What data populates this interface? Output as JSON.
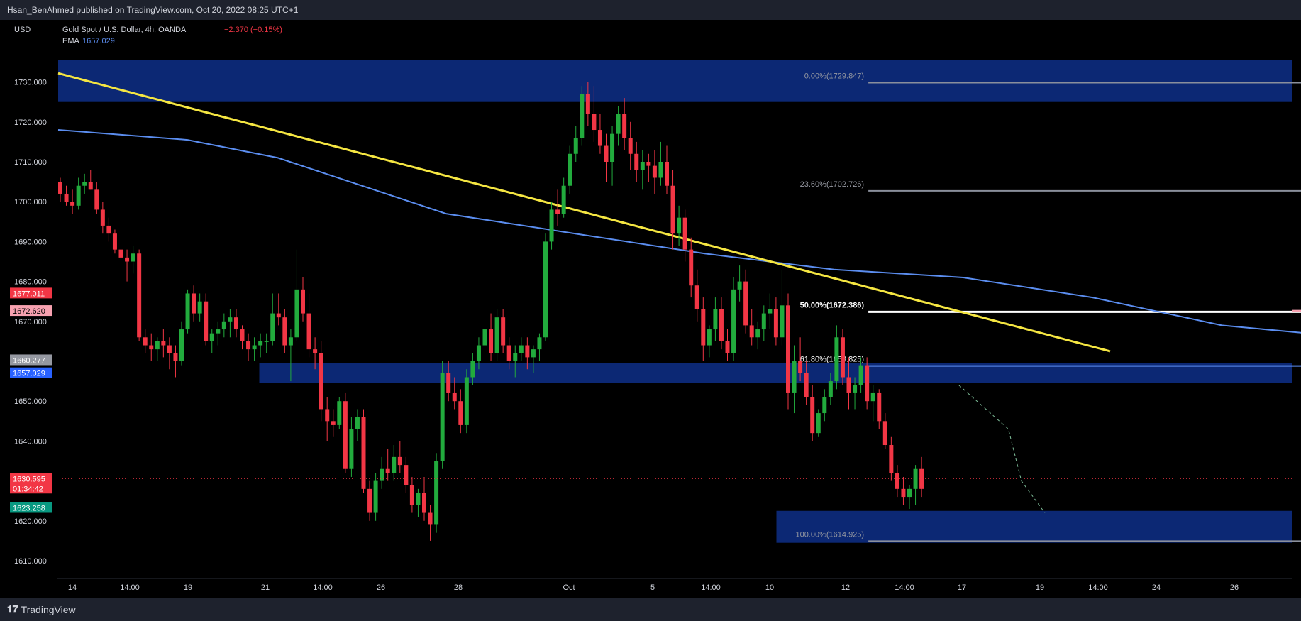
{
  "header": {
    "published": "Hsan_BenAhmed published on TradingView.com, Oct 20, 2022 08:25 UTC+1"
  },
  "footer": {
    "brand": "TradingView",
    "icon": "tradingview-logo-icon"
  },
  "legend": {
    "currency": "USD",
    "symbol": "Gold Spot / U.S. Dollar, 4h, OANDA",
    "change": "−2.370 (−0.15%)",
    "ema_label": "EMA",
    "ema_value": "1657.029"
  },
  "colors": {
    "up": "#26a69a",
    "up_fill": "#22ab3d",
    "down": "#f23645",
    "zone": "#0d2a7a",
    "trendline": "#f5e642",
    "ema": "#5b8def",
    "fib_gray": "#8a8f9c",
    "fib_white": "#ffffff",
    "pink_line": "#f7a1b0"
  },
  "chart_data": {
    "type": "candlestick",
    "title": "Gold Spot / U.S. Dollar, 4h, OANDA",
    "ylim": [
      1602,
      1738
    ],
    "y_ticks": [
      "1730.000",
      "1720.000",
      "1710.000",
      "1700.000",
      "1690.000",
      "1680.000",
      "1670.000",
      "1650.000",
      "1640.000",
      "1620.000",
      "1610.000"
    ],
    "y_tick_values": [
      1730,
      1720,
      1710,
      1700,
      1690,
      1680,
      1670,
      1650,
      1640,
      1620,
      1610
    ],
    "x_ticks": [
      "14",
      "14:00",
      "19",
      "21",
      "14:00",
      "26",
      "28",
      "Oct",
      "5",
      "14:00",
      "10",
      "12",
      "14:00",
      "17",
      "19",
      "14:00",
      "24",
      "26"
    ],
    "x_tick_bars": [
      3,
      28,
      48,
      74,
      102,
      126,
      150,
      198,
      228,
      248,
      268,
      294,
      318,
      338,
      364,
      384,
      404,
      430
    ],
    "price_labels": [
      {
        "text": "1677.011",
        "value": 1677.011,
        "color": "#f23645"
      },
      {
        "text": "1672.620",
        "value": 1672.62,
        "color": "#f7a1b0"
      },
      {
        "text": "1660.277",
        "value": 1660.277,
        "color": "#9598a1"
      },
      {
        "text": "1657.029",
        "value": 1657.029,
        "color": "#2962ff"
      },
      {
        "text": "1630.595",
        "value": 1630.595,
        "color": "#f23645"
      },
      {
        "text": "01:34:42",
        "value": 1630.595,
        "color": "#f23645",
        "offset": 1
      },
      {
        "text": "1623.258",
        "value": 1623.258,
        "color": "#089981"
      }
    ],
    "current_price": 1630.595,
    "zones": [
      {
        "from": 1725,
        "to": 1735.5,
        "start_bar": 0
      },
      {
        "from": 1654.5,
        "to": 1659.5,
        "start_bar": 35
      },
      {
        "from": 1614.5,
        "to": 1622.5,
        "start_bar": 125
      }
    ],
    "fib_levels": [
      {
        "label": "0.00%(1729.847)",
        "value": 1729.847,
        "color": "#8a8f9c"
      },
      {
        "label": "23.60%(1702.726)",
        "value": 1702.726,
        "color": "#8a8f9c"
      },
      {
        "label": "50.00%(1672.386)",
        "value": 1672.386,
        "color": "#ffffff"
      },
      {
        "label": "61.80%(1658.825)",
        "value": 1658.825,
        "color": "#5b8def"
      },
      {
        "label": "100.00%(1614.925)",
        "value": 1614.925,
        "color": "#8a8f9c"
      }
    ],
    "fib_bar_range": [
      141,
      311
    ],
    "trendline": {
      "start_bar": 0,
      "start_value": 1732.2,
      "end_bar": 368,
      "end_value": 1660.4
    },
    "position": {
      "start_bar": 333,
      "end_bar": 395,
      "entry": 1660.4,
      "stop": 1677.0,
      "target": 1622.9
    },
    "pink_line": {
      "value": 1672.62,
      "start_bar": 337
    },
    "candles": [
      [
        1705,
        1706,
        1700,
        1702
      ],
      [
        1702,
        1704,
        1699,
        1700
      ],
      [
        1700,
        1703,
        1697,
        1699
      ],
      [
        1699,
        1706,
        1698,
        1704
      ],
      [
        1704,
        1707,
        1702,
        1705
      ],
      [
        1705,
        1708,
        1703,
        1703
      ],
      [
        1703,
        1705,
        1697,
        1698
      ],
      [
        1698,
        1700,
        1692,
        1694
      ],
      [
        1694,
        1696,
        1690,
        1692
      ],
      [
        1692,
        1693,
        1687,
        1688
      ],
      [
        1688,
        1690,
        1684,
        1686
      ],
      [
        1686,
        1688,
        1680,
        1685
      ],
      [
        1685,
        1689,
        1682,
        1687
      ],
      [
        1687,
        1688,
        1665,
        1666
      ],
      [
        1666,
        1668,
        1662,
        1664
      ],
      [
        1664,
        1667,
        1660,
        1663
      ],
      [
        1663,
        1666,
        1660,
        1665
      ],
      [
        1665,
        1668,
        1661,
        1664
      ],
      [
        1664,
        1666,
        1658,
        1662
      ],
      [
        1662,
        1664,
        1656,
        1660
      ],
      [
        1660,
        1670,
        1659,
        1668
      ],
      [
        1668,
        1678,
        1667,
        1677
      ],
      [
        1677,
        1679,
        1670,
        1672
      ],
      [
        1672,
        1677,
        1670,
        1675
      ],
      [
        1675,
        1677,
        1664,
        1665
      ],
      [
        1665,
        1668,
        1662,
        1667
      ],
      [
        1667,
        1670,
        1664,
        1668
      ],
      [
        1668,
        1672,
        1666,
        1670
      ],
      [
        1670,
        1673,
        1666,
        1671
      ],
      [
        1671,
        1673,
        1666,
        1668
      ],
      [
        1668,
        1669,
        1663,
        1665
      ],
      [
        1665,
        1667,
        1660,
        1663
      ],
      [
        1663,
        1666,
        1660,
        1664
      ],
      [
        1664,
        1667,
        1661,
        1665
      ],
      [
        1665,
        1667,
        1662,
        1665
      ],
      [
        1665,
        1677,
        1664,
        1672
      ],
      [
        1672,
        1677,
        1669,
        1671
      ],
      [
        1671,
        1673,
        1662,
        1664
      ],
      [
        1664,
        1668,
        1655,
        1666
      ],
      [
        1666,
        1688,
        1665,
        1678
      ],
      [
        1678,
        1681,
        1670,
        1672
      ],
      [
        1672,
        1677,
        1661,
        1663
      ],
      [
        1663,
        1666,
        1658,
        1662
      ],
      [
        1662,
        1665,
        1645,
        1648
      ],
      [
        1648,
        1651,
        1640,
        1645
      ],
      [
        1645,
        1648,
        1641,
        1644
      ],
      [
        1644,
        1651,
        1643,
        1650
      ],
      [
        1650,
        1652,
        1632,
        1633
      ],
      [
        1633,
        1646,
        1631,
        1643
      ],
      [
        1643,
        1648,
        1640,
        1646
      ],
      [
        1646,
        1648,
        1627,
        1628
      ],
      [
        1628,
        1630,
        1620,
        1622
      ],
      [
        1622,
        1632,
        1620,
        1630
      ],
      [
        1630,
        1636,
        1628,
        1633
      ],
      [
        1633,
        1638,
        1630,
        1632
      ],
      [
        1632,
        1639,
        1630,
        1636
      ],
      [
        1636,
        1640,
        1632,
        1634
      ],
      [
        1634,
        1636,
        1627,
        1629
      ],
      [
        1629,
        1631,
        1622,
        1624
      ],
      [
        1624,
        1628,
        1621,
        1627
      ],
      [
        1627,
        1631,
        1620,
        1622
      ],
      [
        1622,
        1624,
        1615,
        1619
      ],
      [
        1619,
        1637,
        1617,
        1635
      ],
      [
        1635,
        1660,
        1633,
        1657
      ],
      [
        1657,
        1660,
        1650,
        1652
      ],
      [
        1652,
        1656,
        1648,
        1650
      ],
      [
        1650,
        1653,
        1642,
        1644
      ],
      [
        1644,
        1658,
        1642,
        1656
      ],
      [
        1656,
        1662,
        1654,
        1660
      ],
      [
        1660,
        1666,
        1658,
        1664
      ],
      [
        1664,
        1669,
        1662,
        1668
      ],
      [
        1668,
        1672,
        1660,
        1662
      ],
      [
        1662,
        1673,
        1660,
        1671
      ],
      [
        1671,
        1673,
        1662,
        1664
      ],
      [
        1664,
        1666,
        1658,
        1660
      ],
      [
        1660,
        1664,
        1656,
        1662
      ],
      [
        1662,
        1666,
        1660,
        1664
      ],
      [
        1664,
        1666,
        1658,
        1661
      ],
      [
        1661,
        1664,
        1657,
        1663
      ],
      [
        1663,
        1667,
        1660,
        1666
      ],
      [
        1666,
        1692,
        1665,
        1690
      ],
      [
        1690,
        1700,
        1688,
        1698
      ],
      [
        1698,
        1703,
        1694,
        1697
      ],
      [
        1697,
        1706,
        1696,
        1704
      ],
      [
        1704,
        1714,
        1702,
        1712
      ],
      [
        1712,
        1719,
        1710,
        1716
      ],
      [
        1716,
        1729,
        1714,
        1727
      ],
      [
        1727,
        1730,
        1719,
        1722
      ],
      [
        1722,
        1729,
        1715,
        1718
      ],
      [
        1718,
        1722,
        1712,
        1714
      ],
      [
        1714,
        1717,
        1705,
        1710
      ],
      [
        1710,
        1719,
        1704,
        1717
      ],
      [
        1717,
        1724,
        1714,
        1722
      ],
      [
        1722,
        1726,
        1713,
        1716
      ],
      [
        1716,
        1720,
        1708,
        1712
      ],
      [
        1712,
        1715,
        1705,
        1708
      ],
      [
        1708,
        1713,
        1703,
        1710
      ],
      [
        1710,
        1712,
        1705,
        1709
      ],
      [
        1709,
        1713,
        1702,
        1706
      ],
      [
        1706,
        1715,
        1704,
        1710
      ],
      [
        1710,
        1714,
        1702,
        1704
      ],
      [
        1704,
        1708,
        1688,
        1692
      ],
      [
        1692,
        1699,
        1689,
        1696
      ],
      [
        1696,
        1698,
        1685,
        1688
      ],
      [
        1688,
        1691,
        1676,
        1679
      ],
      [
        1679,
        1683,
        1670,
        1673
      ],
      [
        1673,
        1676,
        1660,
        1664
      ],
      [
        1664,
        1669,
        1661,
        1668
      ],
      [
        1668,
        1676,
        1665,
        1673
      ],
      [
        1673,
        1676,
        1663,
        1665
      ],
      [
        1665,
        1668,
        1660,
        1662
      ],
      [
        1662,
        1681,
        1660,
        1678
      ],
      [
        1678,
        1684,
        1675,
        1680
      ],
      [
        1680,
        1683,
        1667,
        1669
      ],
      [
        1669,
        1673,
        1664,
        1666
      ],
      [
        1666,
        1670,
        1663,
        1668
      ],
      [
        1668,
        1674,
        1665,
        1672
      ],
      [
        1672,
        1677,
        1668,
        1673
      ],
      [
        1673,
        1676,
        1664,
        1666
      ],
      [
        1666,
        1683,
        1664,
        1674
      ],
      [
        1674,
        1677,
        1648,
        1652
      ],
      [
        1652,
        1664,
        1647,
        1660
      ],
      [
        1660,
        1666,
        1655,
        1657
      ],
      [
        1657,
        1660,
        1649,
        1651
      ],
      [
        1651,
        1654,
        1640,
        1642
      ],
      [
        1642,
        1648,
        1641,
        1647
      ],
      [
        1647,
        1653,
        1645,
        1651
      ],
      [
        1651,
        1657,
        1649,
        1655
      ],
      [
        1655,
        1669,
        1653,
        1666
      ],
      [
        1666,
        1668,
        1654,
        1656
      ],
      [
        1656,
        1661,
        1648,
        1652
      ],
      [
        1652,
        1656,
        1648,
        1654
      ],
      [
        1654,
        1661,
        1652,
        1659
      ],
      [
        1659,
        1661,
        1648,
        1650
      ],
      [
        1650,
        1654,
        1645,
        1652
      ],
      [
        1652,
        1653,
        1643,
        1645
      ],
      [
        1645,
        1647,
        1638,
        1639
      ],
      [
        1639,
        1641,
        1630,
        1632
      ],
      [
        1632,
        1634,
        1626,
        1628
      ],
      [
        1628,
        1631,
        1624,
        1626
      ],
      [
        1626,
        1629,
        1623,
        1628
      ],
      [
        1628,
        1634,
        1624,
        1633
      ],
      [
        1633,
        1636,
        1626,
        1628
      ]
    ],
    "ema": [
      [
        0,
        1718
      ],
      [
        10,
        1715.5
      ],
      [
        17,
        1711
      ],
      [
        30,
        1697
      ],
      [
        40,
        1692
      ],
      [
        50,
        1687
      ],
      [
        60,
        1683
      ],
      [
        70,
        1681
      ],
      [
        80,
        1676
      ],
      [
        90,
        1669
      ],
      [
        100,
        1666
      ],
      [
        110,
        1663
      ],
      [
        118,
        1660
      ],
      [
        124,
        1657
      ],
      [
        130,
        1655
      ],
      [
        138,
        1654
      ],
      [
        148,
        1654
      ],
      [
        156,
        1654
      ],
      [
        164,
        1655
      ],
      [
        172,
        1656
      ],
      [
        180,
        1660
      ],
      [
        186,
        1667
      ],
      [
        192,
        1675
      ],
      [
        198,
        1681
      ],
      [
        206,
        1687
      ],
      [
        212,
        1690
      ],
      [
        218,
        1689
      ],
      [
        224,
        1686
      ],
      [
        232,
        1683
      ],
      [
        240,
        1681
      ],
      [
        250,
        1678
      ],
      [
        260,
        1676
      ],
      [
        270,
        1674
      ],
      [
        280,
        1672
      ],
      [
        290,
        1669
      ],
      [
        300,
        1667
      ],
      [
        306,
        1665
      ],
      [
        312,
        1663
      ],
      [
        318,
        1661
      ],
      [
        324,
        1658
      ]
    ],
    "ema_x_scale": 0.4444,
    "dashed_path": [
      [
        346,
        1654
      ],
      [
        365,
        1643
      ],
      [
        370,
        1630
      ],
      [
        379,
        1622
      ]
    ]
  }
}
